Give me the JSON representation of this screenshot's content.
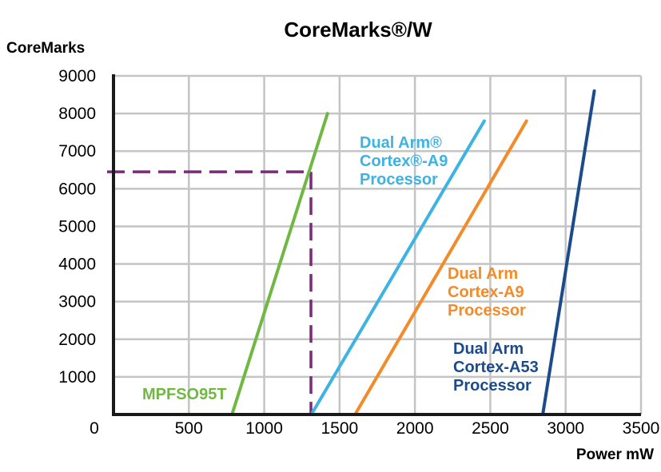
{
  "chart_data": {
    "type": "line",
    "title": "CoreMarks®/W",
    "ylabel": "CoreMarks",
    "xlabel": "Power mW",
    "xlim": [
      0,
      3500
    ],
    "ylim": [
      0,
      9000
    ],
    "x_ticks": [
      0,
      500,
      1000,
      1500,
      2000,
      2500,
      3000,
      3500
    ],
    "y_ticks": [
      1000,
      2000,
      3000,
      4000,
      5000,
      6000,
      7000,
      8000,
      9000
    ],
    "grid": true,
    "series": [
      {
        "name": "MPFSO95T",
        "color": "#70b843",
        "label_lines": [
          "MPFSO95T"
        ],
        "points": [
          [
            790,
            50
          ],
          [
            1420,
            8000
          ]
        ]
      },
      {
        "name": "Dual Arm® Cortex®-A9 Processor",
        "color": "#3cb3e3",
        "label_lines": [
          "Dual Arm®",
          "Cortex®-A9",
          "Processor"
        ],
        "points": [
          [
            1320,
            50
          ],
          [
            2460,
            7800
          ]
        ]
      },
      {
        "name": "Dual Arm Cortex-A9 Processor",
        "color": "#f48b2a",
        "label_lines": [
          "Dual Arm",
          "Cortex-A9",
          "Processor"
        ],
        "points": [
          [
            1610,
            50
          ],
          [
            2740,
            7800
          ]
        ]
      },
      {
        "name": "Dual Arm Cortex-A53 Processor",
        "color": "#1b4b8a",
        "label_lines": [
          "Dual Arm",
          "Cortex-A53",
          "Processor"
        ],
        "points": [
          [
            2850,
            50
          ],
          [
            3190,
            8600
          ]
        ]
      }
    ],
    "reference_lines": {
      "color": "#7b2a78",
      "style": "dashed",
      "x": 1310,
      "y": 6450
    }
  }
}
